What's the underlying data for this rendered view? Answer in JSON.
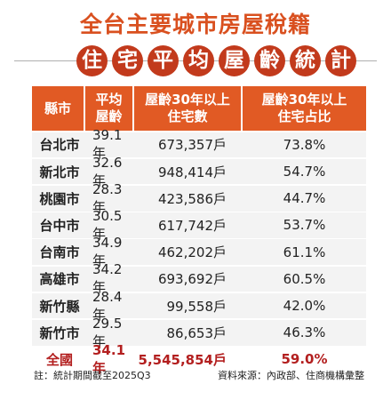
{
  "title": "全台主要城市房屋稅籍",
  "subtitle_chars": [
    "住",
    "宅",
    "平",
    "均",
    "屋",
    "齡",
    "統",
    "計"
  ],
  "table": {
    "headers": [
      "縣市",
      "平均\n屋齡",
      "屋齡30年以上\n住宅數",
      "屋齡30年以上\n住宅占比"
    ],
    "rows": [
      {
        "city": "台北市",
        "avg_age": "39.1年",
        "count": "673,357戶",
        "share": "73.8%"
      },
      {
        "city": "新北市",
        "avg_age": "32.6年",
        "count": "948,414戶",
        "share": "54.7%"
      },
      {
        "city": "桃園市",
        "avg_age": "28.3年",
        "count": "423,586戶",
        "share": "44.7%"
      },
      {
        "city": "台中市",
        "avg_age": "30.5年",
        "count": "617,742戶",
        "share": "53.7%"
      },
      {
        "city": "台南市",
        "avg_age": "34.9年",
        "count": "462,202戶",
        "share": "61.1%"
      },
      {
        "city": "高雄市",
        "avg_age": "34.2年",
        "count": "693,692戶",
        "share": "60.5%"
      },
      {
        "city": "新竹縣",
        "avg_age": "28.4年",
        "count": "99,558戶",
        "share": "42.0%"
      },
      {
        "city": "新竹市",
        "avg_age": "29.5年",
        "count": "86,653戶",
        "share": "46.3%"
      }
    ],
    "total": {
      "city": "全國",
      "avg_age": "34.1年",
      "count": "5,545,854戶",
      "share": "59.0%"
    }
  },
  "footer": {
    "note": "註：統計期間截至2025Q3",
    "source": "資料來源：內政部、住商機構彙整"
  },
  "colors": {
    "title": "#d9501f",
    "subtitle_circle": "#c23a1c",
    "header_bg": "#e15a24",
    "row_bg": "#f3f3f3",
    "total_text": "#b31f1f"
  }
}
